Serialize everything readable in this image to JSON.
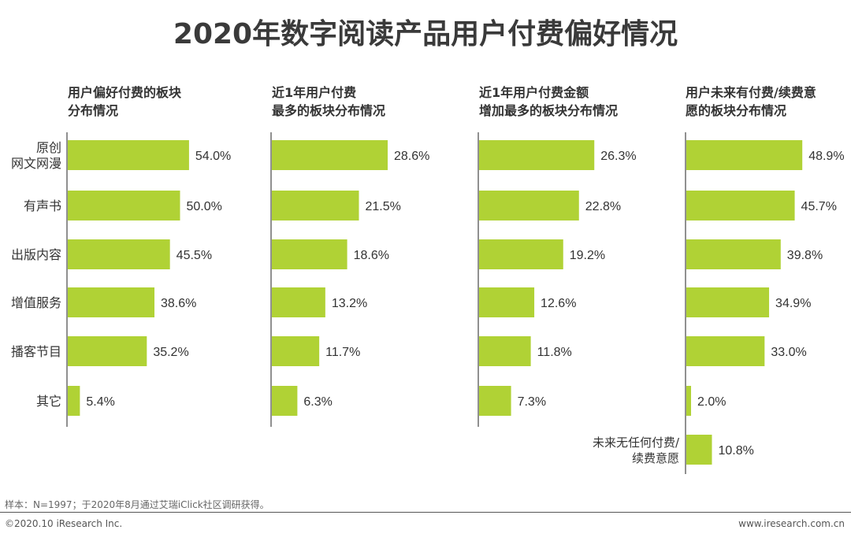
{
  "title": "2020年数字阅读产品用户付费偏好情况",
  "colors": {
    "bar": "#b0d235",
    "axis": "#555555",
    "text": "#333333"
  },
  "chart_data": [
    {
      "type": "bar",
      "orientation": "horizontal",
      "title": "用户偏好付费的板块分布情况",
      "title_lines": [
        "用户偏好付费的板块",
        "分布情况"
      ],
      "categories": [
        "原创网文网漫",
        "有声书",
        "出版内容",
        "增值服务",
        "播客节目",
        "其它"
      ],
      "values": [
        54.0,
        50.0,
        45.5,
        38.6,
        35.2,
        5.4
      ],
      "labels": [
        "54.0%",
        "50.0%",
        "45.5%",
        "38.6%",
        "35.2%",
        "5.4%"
      ],
      "unit": "%"
    },
    {
      "type": "bar",
      "orientation": "horizontal",
      "title": "近1年用户付费最多的板块分布情况",
      "title_lines": [
        "近1年用户付费",
        "最多的板块分布情况"
      ],
      "categories": [
        "原创网文网漫",
        "有声书",
        "出版内容",
        "增值服务",
        "播客节目",
        "其它"
      ],
      "values": [
        28.6,
        21.5,
        18.6,
        13.2,
        11.7,
        6.3
      ],
      "labels": [
        "28.6%",
        "21.5%",
        "18.6%",
        "13.2%",
        "11.7%",
        "6.3%"
      ],
      "unit": "%"
    },
    {
      "type": "bar",
      "orientation": "horizontal",
      "title": "近1年用户付费金额增加最多的板块分布情况",
      "title_lines": [
        "近1年用户付费金额",
        "增加最多的板块分布情况"
      ],
      "categories": [
        "原创网文网漫",
        "有声书",
        "出版内容",
        "增值服务",
        "播客节目",
        "其它"
      ],
      "values": [
        26.3,
        22.8,
        19.2,
        12.6,
        11.8,
        7.3
      ],
      "labels": [
        "26.3%",
        "22.8%",
        "19.2%",
        "12.6%",
        "11.8%",
        "7.3%"
      ],
      "unit": "%"
    },
    {
      "type": "bar",
      "orientation": "horizontal",
      "title": "用户未来有付费/续费意愿的板块分布情况",
      "title_lines": [
        "用户未来有付费/续费意",
        "愿的板块分布情况"
      ],
      "categories": [
        "原创网文网漫",
        "有声书",
        "出版内容",
        "增值服务",
        "播客节目",
        "其它",
        "未来无任何付费/续费意愿"
      ],
      "values": [
        48.9,
        45.7,
        39.8,
        34.9,
        33.0,
        2.0,
        10.8
      ],
      "labels": [
        "48.9%",
        "45.7%",
        "39.8%",
        "34.9%",
        "33.0%",
        "2.0%",
        "10.8%"
      ],
      "unit": "%"
    }
  ],
  "row_labels": [
    [
      "原创",
      "网文网漫"
    ],
    [
      "有声书"
    ],
    [
      "出版内容"
    ],
    [
      "增值服务"
    ],
    [
      "播客节目"
    ],
    [
      "其它"
    ]
  ],
  "extra_row_label": [
    "未来无任何付费/",
    "续费意愿"
  ],
  "footnote": "样本：N=1997；于2020年8月通过艾瑞iClick社区调研获得。",
  "copyright": "©2020.10 iResearch Inc.",
  "website": "www.iresearch.com.cn"
}
